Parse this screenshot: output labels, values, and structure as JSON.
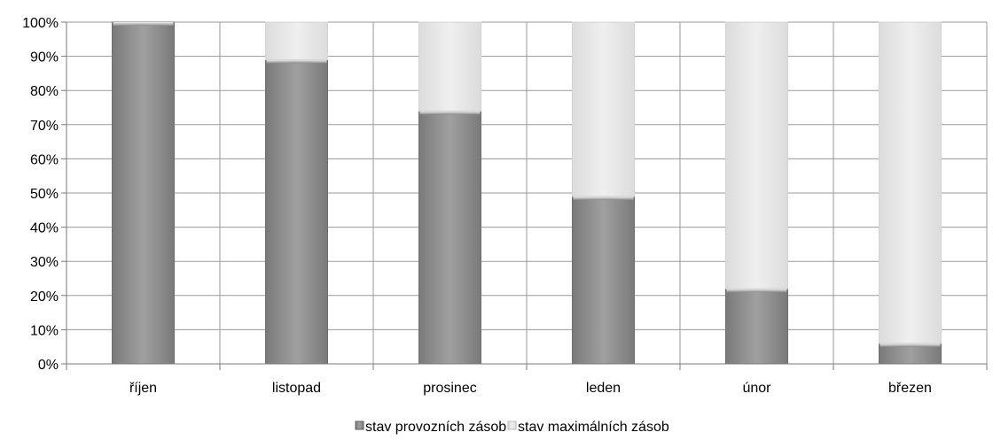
{
  "chart_data": {
    "type": "bar",
    "stacked": true,
    "categories": [
      "říjen",
      "listopad",
      "prosinec",
      "leden",
      "únor",
      "březen"
    ],
    "series": [
      {
        "name": "stav provozních zásob",
        "values": [
          100,
          89,
          74,
          49,
          22,
          6
        ],
        "color": "#8c8c8c"
      },
      {
        "name": "stav maximálních zásob",
        "values": [
          0,
          11,
          26,
          51,
          78,
          94
        ],
        "color": "#e8e8e8"
      }
    ],
    "ylim": [
      0,
      100
    ],
    "yticks": [
      "0%",
      "10%",
      "20%",
      "30%",
      "40%",
      "50%",
      "60%",
      "70%",
      "80%",
      "90%",
      "100%"
    ],
    "grid": true,
    "legend": "bottom"
  }
}
